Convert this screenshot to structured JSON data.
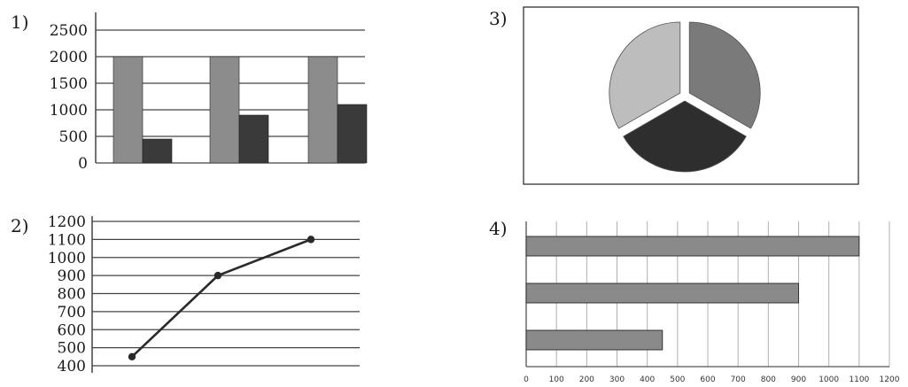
{
  "panel_labels": [
    "1)",
    "2)",
    "3)",
    "4)"
  ],
  "colors": {
    "bar_light": "#8c8c8c",
    "bar_dark": "#3a3a3a",
    "line": "#2a2a2a",
    "pie": [
      "#7a7a7a",
      "#2e2e2e",
      "#bdbdbd"
    ],
    "hbar": "#8a8a8a",
    "grid": "#444444"
  },
  "chart_data": [
    {
      "type": "bar",
      "panel": "1)",
      "categories": [
        "",
        "",
        ""
      ],
      "series": [
        {
          "values": [
            2000,
            2000,
            2000
          ]
        },
        {
          "values": [
            450,
            900,
            1100
          ]
        }
      ],
      "yticks": [
        0,
        500,
        1000,
        1500,
        2000,
        2500
      ],
      "ylim": [
        0,
        2500
      ],
      "grid": true
    },
    {
      "type": "line",
      "panel": "2)",
      "values": [
        450,
        900,
        1100
      ],
      "yticks": [
        400,
        500,
        600,
        700,
        800,
        900,
        1000,
        1100,
        1200
      ],
      "ylim": [
        400,
        1200
      ],
      "grid": true
    },
    {
      "type": "pie",
      "panel": "3)",
      "values": [
        1,
        1,
        1
      ],
      "exploded": true
    },
    {
      "type": "bar",
      "orientation": "horizontal",
      "panel": "4)",
      "values": [
        1100,
        900,
        450
      ],
      "xticks": [
        0,
        100,
        200,
        300,
        400,
        500,
        600,
        700,
        800,
        900,
        1000,
        1100,
        1200
      ],
      "xlim": [
        0,
        1200
      ],
      "grid": true
    }
  ]
}
